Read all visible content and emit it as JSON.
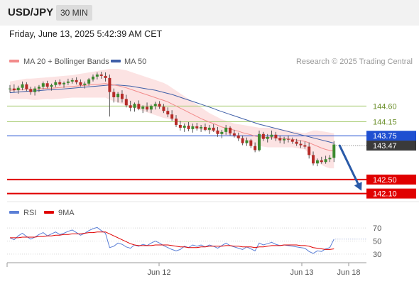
{
  "header": {
    "symbol": "USD/JPY",
    "timeframe": "30 MIN"
  },
  "timestamp": "Friday, June 13, 2025 5:42:39 AM CET",
  "legend": {
    "ma20": {
      "label": "MA 20 + Bollinger Bands",
      "color": "#f28b8b"
    },
    "ma50": {
      "label": "MA 50",
      "color": "#3f5fa8"
    },
    "rsi": {
      "label": "RSI",
      "color": "#5b7fd6"
    },
    "rsi_ma": {
      "label": "9MA",
      "color": "#e00000"
    }
  },
  "credit": "Research © 2025 Trading Central",
  "chart_data": {
    "type": "candlestick",
    "symbol": "USD/JPY",
    "timeframe": "30 MIN",
    "x_ticks": [
      "Jun 12",
      "Jun 13",
      "Jun 18"
    ],
    "y_range": [
      141.95,
      145.6
    ],
    "levels": [
      {
        "value": 144.6,
        "label": "144.60",
        "kind": "resistance",
        "color": "#a3c96b"
      },
      {
        "value": 144.15,
        "label": "144.15",
        "kind": "resistance",
        "color": "#a3c96b"
      },
      {
        "value": 143.75,
        "label": "143.75",
        "kind": "pivot",
        "color": "#1f4fd1"
      },
      {
        "value": 142.5,
        "label": "142.50",
        "kind": "support",
        "color": "#e00000"
      },
      {
        "value": 142.1,
        "label": "142.10",
        "kind": "support",
        "color": "#e00000"
      }
    ],
    "last_price": {
      "value": 143.47,
      "label": "143.47"
    },
    "forecast_arrow": {
      "from": 143.47,
      "to": 142.1,
      "direction": "down",
      "color": "#2a5aa8"
    },
    "rsi_panel": {
      "ticks": [
        30,
        50,
        70
      ],
      "y_range": [
        20,
        80
      ]
    },
    "candles": [
      [
        145.08,
        145.2,
        144.98,
        145.1
      ],
      [
        145.1,
        145.22,
        145.0,
        145.05
      ],
      [
        145.05,
        145.18,
        144.95,
        145.12
      ],
      [
        145.12,
        145.3,
        145.05,
        145.22
      ],
      [
        145.22,
        145.28,
        145.02,
        145.08
      ],
      [
        145.08,
        145.15,
        144.92,
        145.0
      ],
      [
        145.0,
        145.16,
        144.9,
        145.1
      ],
      [
        145.1,
        145.2,
        145.0,
        145.15
      ],
      [
        145.15,
        145.3,
        145.08,
        145.25
      ],
      [
        145.25,
        145.32,
        145.1,
        145.15
      ],
      [
        145.15,
        145.24,
        145.04,
        145.2
      ],
      [
        145.2,
        145.34,
        145.14,
        145.28
      ],
      [
        145.28,
        145.36,
        145.18,
        145.22
      ],
      [
        145.22,
        145.3,
        145.12,
        145.26
      ],
      [
        145.26,
        145.38,
        145.2,
        145.3
      ],
      [
        145.3,
        145.4,
        145.24,
        145.34
      ],
      [
        145.34,
        145.42,
        145.22,
        145.28
      ],
      [
        145.28,
        145.36,
        145.16,
        145.2
      ],
      [
        145.2,
        145.3,
        145.1,
        145.24
      ],
      [
        145.24,
        145.4,
        145.18,
        145.36
      ],
      [
        145.36,
        145.5,
        145.3,
        145.44
      ],
      [
        145.44,
        145.56,
        145.36,
        145.5
      ],
      [
        145.5,
        145.58,
        145.38,
        145.46
      ],
      [
        145.46,
        145.56,
        145.3,
        145.4
      ],
      [
        145.4,
        145.5,
        144.3,
        145.0
      ],
      [
        145.0,
        145.1,
        144.7,
        144.85
      ],
      [
        144.85,
        145.0,
        144.7,
        144.95
      ],
      [
        144.95,
        145.05,
        144.7,
        144.8
      ],
      [
        144.8,
        144.92,
        144.56,
        144.62
      ],
      [
        144.62,
        144.75,
        144.45,
        144.55
      ],
      [
        144.55,
        144.7,
        144.44,
        144.66
      ],
      [
        144.66,
        144.76,
        144.48,
        144.52
      ],
      [
        144.52,
        144.62,
        144.4,
        144.58
      ],
      [
        144.58,
        144.7,
        144.44,
        144.5
      ],
      [
        144.5,
        144.64,
        144.4,
        144.6
      ],
      [
        144.6,
        144.72,
        144.5,
        144.66
      ],
      [
        144.66,
        144.74,
        144.52,
        144.58
      ],
      [
        144.58,
        144.66,
        144.4,
        144.46
      ],
      [
        144.46,
        144.56,
        144.28,
        144.36
      ],
      [
        144.36,
        144.48,
        144.18,
        144.24
      ],
      [
        144.24,
        144.34,
        144.0,
        144.06
      ],
      [
        144.06,
        144.18,
        143.9,
        143.98
      ],
      [
        143.98,
        144.1,
        143.86,
        144.04
      ],
      [
        144.04,
        144.14,
        143.88,
        143.94
      ],
      [
        143.94,
        144.1,
        143.84,
        144.02
      ],
      [
        144.02,
        144.12,
        143.9,
        143.96
      ],
      [
        143.96,
        144.06,
        143.86,
        144.0
      ],
      [
        144.0,
        144.1,
        143.88,
        143.92
      ],
      [
        143.92,
        144.06,
        143.8,
        143.98
      ],
      [
        143.98,
        144.08,
        143.86,
        143.9
      ],
      [
        143.9,
        144.0,
        143.72,
        143.8
      ],
      [
        143.8,
        143.92,
        143.68,
        143.86
      ],
      [
        143.86,
        144.06,
        143.78,
        143.98
      ],
      [
        143.98,
        144.02,
        143.76,
        143.82
      ],
      [
        143.82,
        143.92,
        143.7,
        143.76
      ],
      [
        143.76,
        143.84,
        143.6,
        143.68
      ],
      [
        143.68,
        143.76,
        143.48,
        143.54
      ],
      [
        143.54,
        143.7,
        143.46,
        143.62
      ],
      [
        143.62,
        143.66,
        143.4,
        143.46
      ],
      [
        143.46,
        143.56,
        143.28,
        143.34
      ],
      [
        143.34,
        143.9,
        143.3,
        143.8
      ],
      [
        143.8,
        143.86,
        143.6,
        143.66
      ],
      [
        143.66,
        143.8,
        143.56,
        143.72
      ],
      [
        143.72,
        143.9,
        143.64,
        143.78
      ],
      [
        143.78,
        143.86,
        143.6,
        143.68
      ],
      [
        143.68,
        143.76,
        143.54,
        143.62
      ],
      [
        143.62,
        143.72,
        143.52,
        143.66
      ],
      [
        143.66,
        143.76,
        143.56,
        143.64
      ],
      [
        143.64,
        143.7,
        143.52,
        143.58
      ],
      [
        143.58,
        143.66,
        143.46,
        143.52
      ],
      [
        143.52,
        143.62,
        143.4,
        143.48
      ],
      [
        143.48,
        143.58,
        143.38,
        143.44
      ],
      [
        143.44,
        143.56,
        143.1,
        143.2
      ],
      [
        143.2,
        143.3,
        142.9,
        142.96
      ],
      [
        142.96,
        143.1,
        142.88,
        143.05
      ],
      [
        143.05,
        143.15,
        142.95,
        143.0
      ],
      [
        143.0,
        143.18,
        142.95,
        143.08
      ],
      [
        143.08,
        143.2,
        143.0,
        143.12
      ],
      [
        143.12,
        143.6,
        143.0,
        143.5
      ]
    ],
    "ma20": [
      145.05,
      145.06,
      145.07,
      145.08,
      145.09,
      145.08,
      145.08,
      145.09,
      145.1,
      145.11,
      145.11,
      145.12,
      145.13,
      145.14,
      145.15,
      145.16,
      145.17,
      145.18,
      145.19,
      145.2,
      145.21,
      145.22,
      145.23,
      145.24,
      145.22,
      145.2,
      145.18,
      145.15,
      145.12,
      145.08,
      145.04,
      145.0,
      144.96,
      144.92,
      144.88,
      144.84,
      144.8,
      144.76,
      144.72,
      144.66,
      144.6,
      144.54,
      144.48,
      144.42,
      144.36,
      144.3,
      144.24,
      144.19,
      144.14,
      144.1,
      144.05,
      144.0,
      143.97,
      143.94,
      143.91,
      143.88,
      143.84,
      143.81,
      143.78,
      143.74,
      143.72,
      143.71,
      143.7,
      143.7,
      143.69,
      143.68,
      143.67,
      143.66,
      143.65,
      143.63,
      143.61,
      143.59,
      143.55,
      143.5,
      143.45,
      143.4,
      143.36,
      143.33,
      143.32
    ],
    "ma50": [
      144.98,
      144.99,
      145.0,
      145.01,
      145.02,
      145.03,
      145.03,
      145.04,
      145.05,
      145.06,
      145.06,
      145.07,
      145.08,
      145.09,
      145.1,
      145.11,
      145.12,
      145.13,
      145.14,
      145.15,
      145.16,
      145.17,
      145.18,
      145.19,
      145.2,
      145.2,
      145.2,
      145.19,
      145.18,
      145.17,
      145.15,
      145.13,
      145.11,
      145.09,
      145.07,
      145.05,
      145.02,
      144.99,
      144.96,
      144.93,
      144.89,
      144.85,
      144.81,
      144.77,
      144.73,
      144.69,
      144.65,
      144.61,
      144.57,
      144.53,
      144.48,
      144.44,
      144.4,
      144.36,
      144.32,
      144.28,
      144.24,
      144.2,
      144.16,
      144.12,
      144.08,
      144.05,
      144.02,
      143.99,
      143.96,
      143.93,
      143.9,
      143.87,
      143.84,
      143.81,
      143.78,
      143.75,
      143.72,
      143.69,
      143.66,
      143.63,
      143.6,
      143.57,
      143.54
    ],
    "bollinger": {
      "upper": [
        145.3,
        145.32,
        145.34,
        145.36,
        145.38,
        145.38,
        145.39,
        145.4,
        145.41,
        145.42,
        145.43,
        145.44,
        145.45,
        145.46,
        145.47,
        145.48,
        145.5,
        145.52,
        145.54,
        145.56,
        145.58,
        145.6,
        145.62,
        145.64,
        145.66,
        145.66,
        145.66,
        145.64,
        145.62,
        145.58,
        145.54,
        145.5,
        145.46,
        145.42,
        145.38,
        145.34,
        145.3,
        145.26,
        145.2,
        145.12,
        145.04,
        144.96,
        144.88,
        144.8,
        144.72,
        144.64,
        144.56,
        144.48,
        144.4,
        144.34,
        144.28,
        144.22,
        144.18,
        144.14,
        144.1,
        144.08,
        144.06,
        144.04,
        144.02,
        144.0,
        143.98,
        143.98,
        143.98,
        143.98,
        143.96,
        143.94,
        143.92,
        143.9,
        143.88,
        143.86,
        143.84,
        143.82,
        143.86,
        143.9,
        143.9,
        143.88,
        143.86,
        143.84,
        143.82
      ],
      "lower": [
        144.8,
        144.8,
        144.8,
        144.8,
        144.8,
        144.78,
        144.77,
        144.78,
        144.79,
        144.8,
        144.79,
        144.8,
        144.81,
        144.82,
        144.83,
        144.84,
        144.84,
        144.84,
        144.84,
        144.84,
        144.84,
        144.84,
        144.84,
        144.84,
        144.78,
        144.74,
        144.7,
        144.66,
        144.62,
        144.58,
        144.54,
        144.5,
        144.46,
        144.42,
        144.38,
        144.34,
        144.3,
        144.26,
        144.24,
        144.2,
        144.16,
        144.12,
        144.08,
        144.04,
        144.0,
        143.96,
        143.92,
        143.9,
        143.88,
        143.86,
        143.82,
        143.78,
        143.76,
        143.74,
        143.72,
        143.68,
        143.62,
        143.58,
        143.54,
        143.48,
        143.46,
        143.44,
        143.42,
        143.42,
        143.42,
        143.42,
        143.42,
        143.42,
        143.42,
        143.4,
        143.38,
        143.36,
        143.24,
        143.1,
        143.0,
        142.92,
        142.86,
        142.82,
        142.82
      ]
    },
    "rsi": [
      55,
      52,
      58,
      62,
      57,
      53,
      56,
      60,
      63,
      58,
      61,
      64,
      60,
      62,
      65,
      67,
      63,
      59,
      62,
      66,
      69,
      71,
      66,
      62,
      40,
      42,
      47,
      45,
      41,
      39,
      44,
      42,
      45,
      43,
      47,
      50,
      47,
      43,
      40,
      37,
      35,
      37,
      42,
      40,
      44,
      42,
      44,
      41,
      44,
      42,
      39,
      43,
      47,
      43,
      41,
      39,
      37,
      41,
      38,
      35,
      47,
      44,
      46,
      48,
      45,
      43,
      44,
      43,
      42,
      41,
      40,
      39,
      34,
      31,
      35,
      34,
      38,
      40,
      53
    ],
    "rsi_ma": [
      55,
      55,
      55,
      56,
      56,
      56,
      56,
      57,
      57,
      58,
      58,
      59,
      59,
      60,
      60,
      61,
      61,
      61,
      62,
      63,
      63,
      64,
      64,
      64,
      61,
      58,
      55,
      52,
      49,
      46,
      44,
      43,
      43,
      43,
      43,
      44,
      44,
      44,
      44,
      43,
      42,
      41,
      41,
      40,
      40,
      40,
      41,
      41,
      42,
      42,
      42,
      42,
      43,
      43,
      42,
      42,
      41,
      41,
      41,
      40,
      41,
      41,
      42,
      43,
      43,
      43,
      44,
      44,
      44,
      44,
      43,
      43,
      42,
      40,
      39,
      38,
      37,
      37,
      38
    ]
  }
}
